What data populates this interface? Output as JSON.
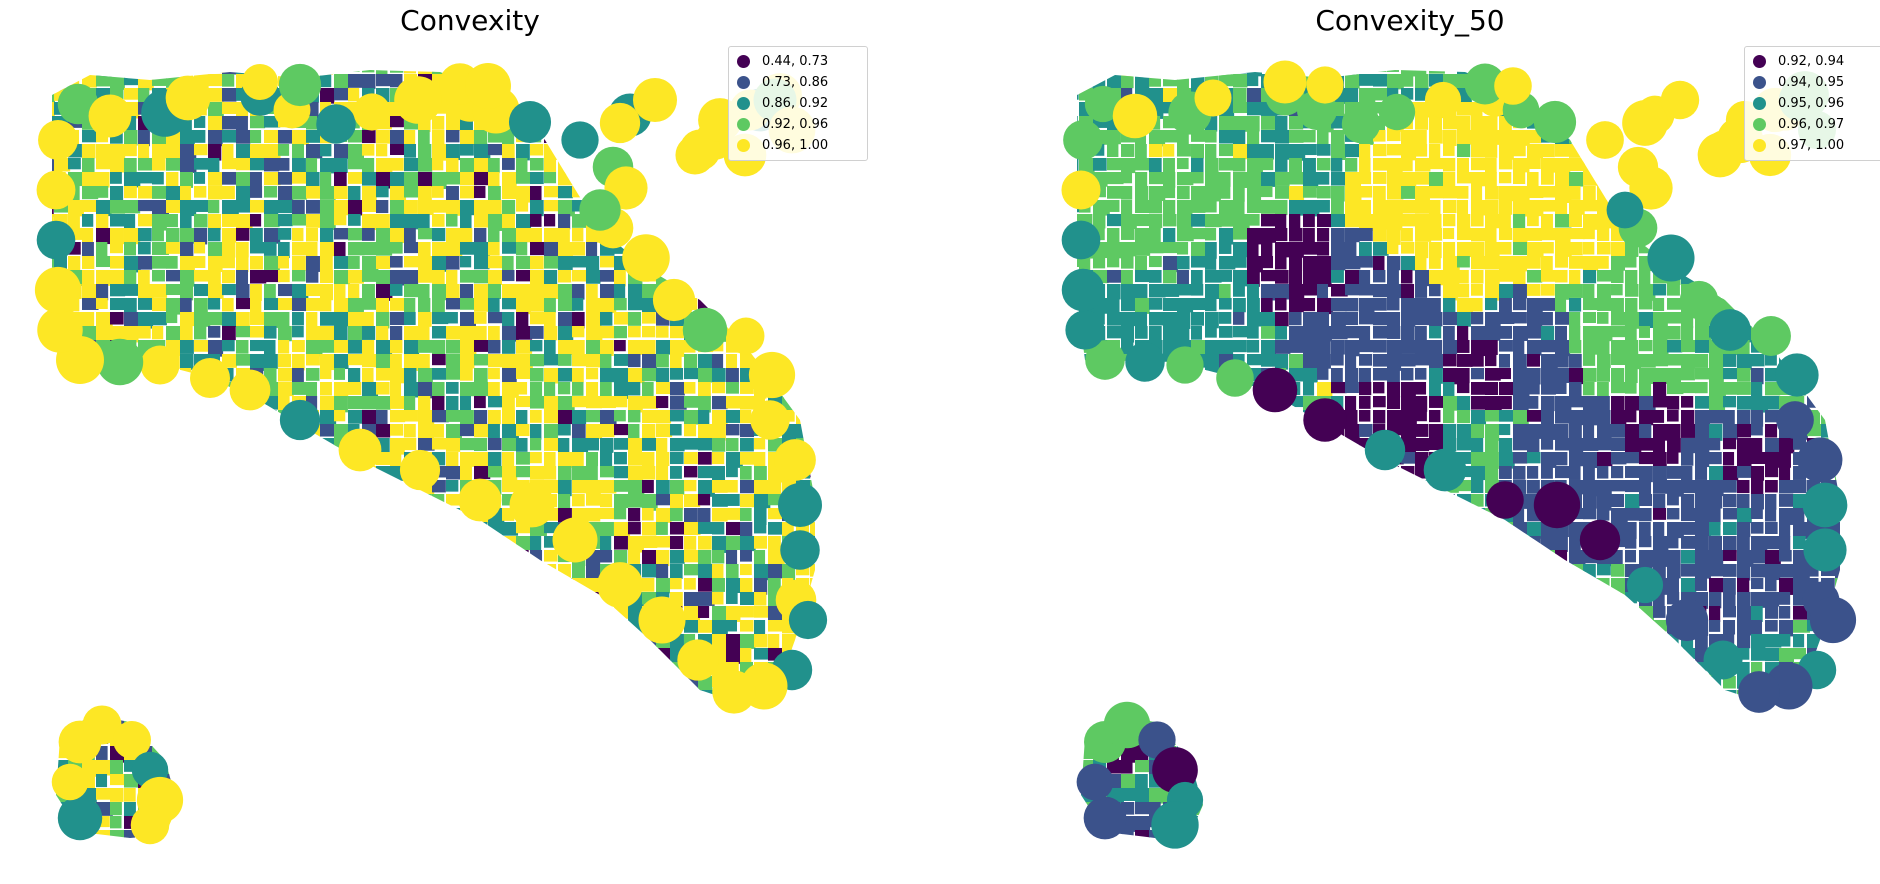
{
  "colors": {
    "c1": "#440154",
    "c2": "#3b528b",
    "c3": "#21918c",
    "c4": "#5ec962",
    "c5": "#fde725"
  },
  "maps": [
    {
      "title": "Convexity",
      "legend": [
        "0.44, 0.73",
        "0.73, 0.86",
        "0.86, 0.92",
        "0.92, 0.96",
        "0.96, 1.00"
      ],
      "pattern": "fine-mixed"
    },
    {
      "title": "Convexity_50",
      "legend": [
        "0.92, 0.94",
        "0.94, 0.95",
        "0.95, 0.96",
        "0.96, 0.97",
        "0.97, 1.00"
      ],
      "pattern": "smoothed-clusters"
    }
  ]
}
